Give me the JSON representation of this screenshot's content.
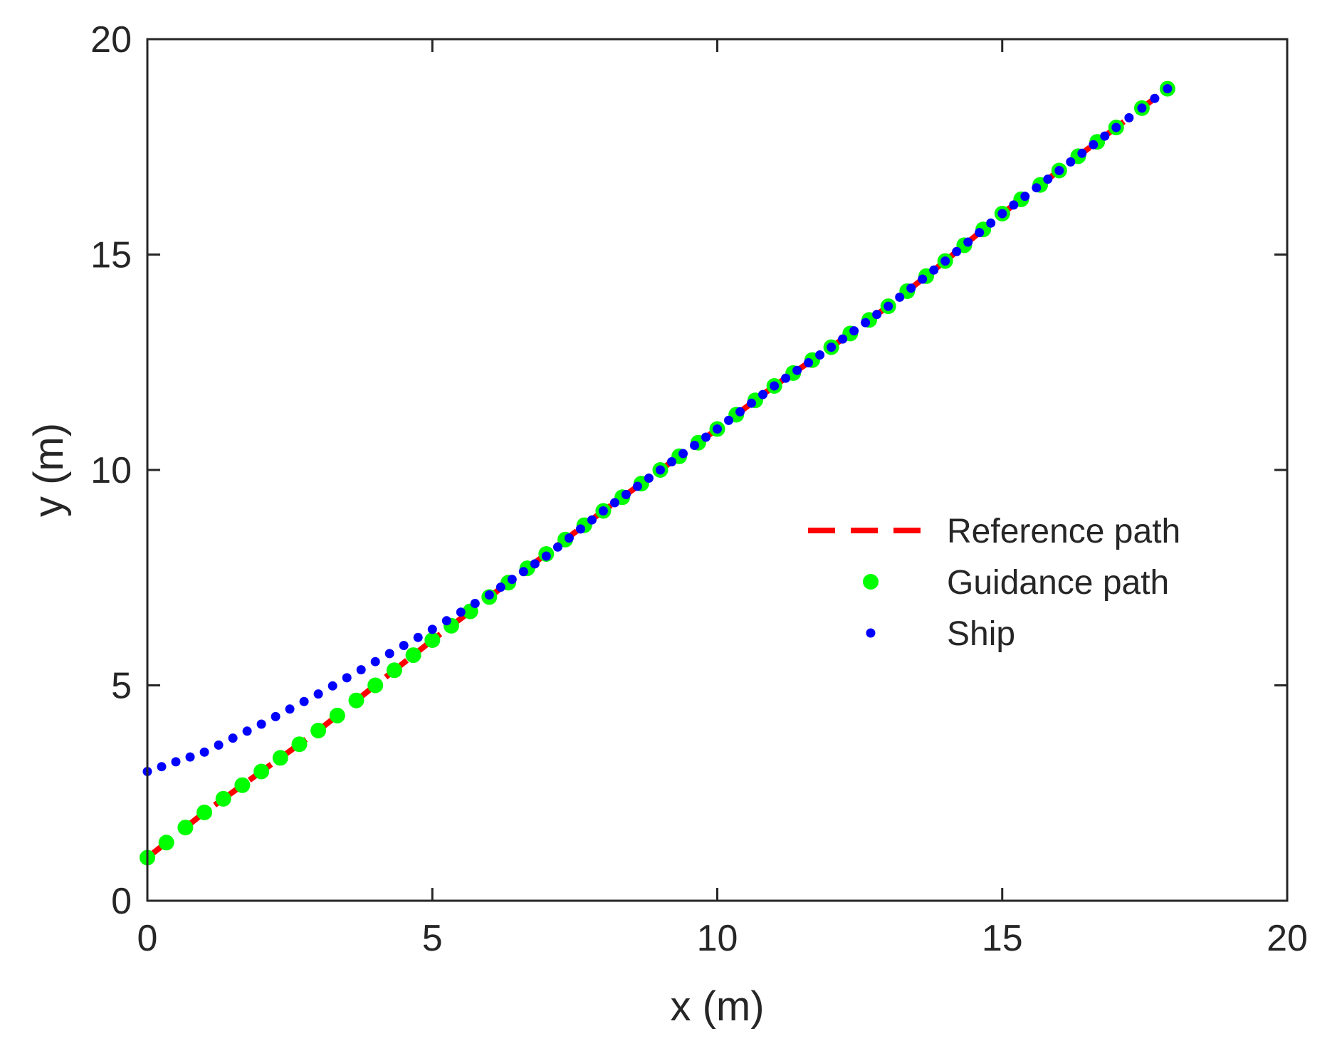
{
  "chart_data": {
    "type": "scatter",
    "title": "",
    "xlabel": "x (m)",
    "ylabel": "y (m)",
    "xlim": [
      0,
      20
    ],
    "ylim": [
      0,
      20
    ],
    "xticks": [
      "0",
      "5",
      "10",
      "15",
      "20"
    ],
    "yticks": [
      "0",
      "5",
      "10",
      "15",
      "20"
    ],
    "grid": false,
    "legend_position": "right",
    "series": [
      {
        "name": "Reference path",
        "style": "dashed-line",
        "color": "#ff0000",
        "x": [
          0,
          1,
          2,
          3,
          4,
          5,
          6,
          7,
          8,
          9,
          10,
          11,
          12,
          13,
          14,
          15,
          16,
          17,
          17.9
        ],
        "y": [
          1.0,
          2.05,
          3.0,
          3.95,
          5.0,
          6.05,
          7.05,
          8.05,
          9.05,
          10.0,
          10.95,
          11.95,
          12.85,
          13.8,
          14.85,
          15.95,
          16.95,
          17.95,
          18.85
        ]
      },
      {
        "name": "Guidance path",
        "style": "large-marker",
        "color": "#00ff00",
        "x": [
          0,
          1,
          2,
          3,
          4,
          5,
          6,
          7,
          8,
          9,
          10,
          11,
          12,
          13,
          14,
          15,
          16,
          17,
          17.9
        ],
        "y": [
          1.0,
          2.05,
          3.0,
          3.95,
          5.0,
          6.05,
          7.05,
          8.05,
          9.05,
          10.0,
          10.95,
          11.95,
          12.85,
          13.8,
          14.85,
          15.95,
          16.95,
          17.95,
          18.85
        ]
      },
      {
        "name": "Ship",
        "style": "small-marker",
        "color": "#0000ff",
        "x": [
          0,
          1,
          2,
          3,
          4,
          5,
          6,
          7,
          8,
          9,
          10,
          11,
          12,
          13,
          14,
          15,
          16,
          17,
          17.9
        ],
        "y": [
          3.0,
          3.45,
          4.1,
          4.8,
          5.55,
          6.3,
          7.1,
          8.0,
          9.05,
          10.0,
          10.95,
          11.95,
          12.85,
          13.8,
          14.85,
          15.95,
          16.95,
          17.95,
          18.85
        ]
      }
    ]
  }
}
